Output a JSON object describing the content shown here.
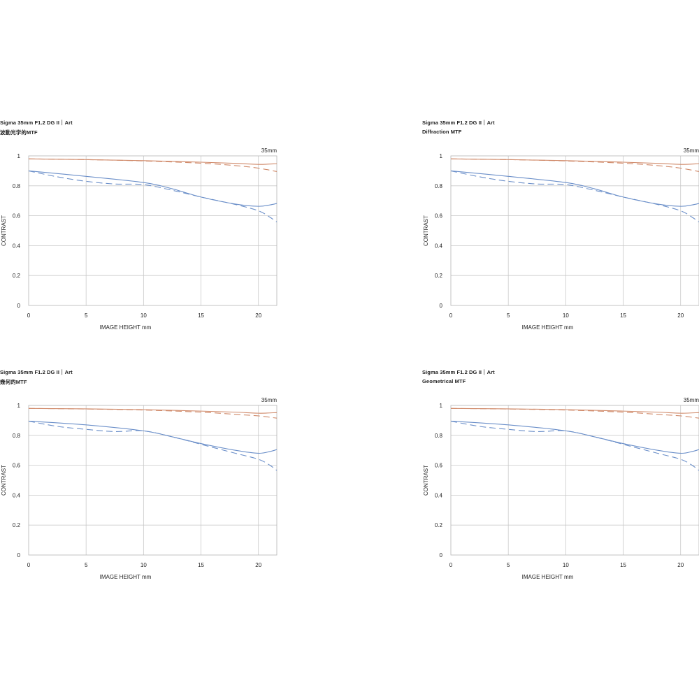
{
  "chart_data": [
    {
      "type": "line",
      "title": "Sigma 35mm F1.2 DG II｜Art",
      "subtitle": "波動光学的MTF",
      "focal_label": "35mm",
      "xlabel": "IMAGE HEIGHT  mm",
      "ylabel": "CONTRAST",
      "xlim": [
        0,
        21.6
      ],
      "ylim": [
        0,
        1
      ],
      "xticks": [
        "0",
        "5",
        "10",
        "15",
        "20"
      ],
      "yticks": [
        "0",
        "0.2",
        "0.4",
        "0.6",
        "0.8",
        "1"
      ],
      "grid": true,
      "series": [
        {
          "color": "#d08a6a",
          "dash": false,
          "x": [
            0,
            5,
            10,
            15,
            18,
            20,
            21.6
          ],
          "y": [
            0.98,
            0.975,
            0.968,
            0.958,
            0.95,
            0.943,
            0.948
          ]
        },
        {
          "color": "#d08a6a",
          "dash": true,
          "x": [
            0,
            5,
            10,
            15,
            18,
            20,
            21.6
          ],
          "y": [
            0.98,
            0.975,
            0.966,
            0.951,
            0.935,
            0.918,
            0.895
          ]
        },
        {
          "color": "#6b8fc9",
          "dash": false,
          "x": [
            0,
            5,
            10,
            12.5,
            15,
            18,
            20,
            21,
            21.6
          ],
          "y": [
            0.9,
            0.863,
            0.822,
            0.78,
            0.725,
            0.678,
            0.663,
            0.672,
            0.682
          ]
        },
        {
          "color": "#6b8fc9",
          "dash": true,
          "x": [
            0,
            2.5,
            5,
            7.5,
            10,
            12.5,
            15,
            18,
            20,
            21,
            21.6
          ],
          "y": [
            0.9,
            0.86,
            0.83,
            0.812,
            0.808,
            0.77,
            0.725,
            0.675,
            0.633,
            0.59,
            0.558
          ]
        }
      ]
    },
    {
      "type": "line",
      "title": "Sigma 35mm F1.2 DG II｜Art",
      "subtitle": "Diffraction MTF",
      "focal_label": "35mm",
      "xlabel": "IMAGE HEIGHT  mm",
      "ylabel": "CONTRAST",
      "xlim": [
        0,
        21.6
      ],
      "ylim": [
        0,
        1
      ],
      "xticks": [
        "0",
        "5",
        "10",
        "15",
        "20"
      ],
      "yticks": [
        "0",
        "0.2",
        "0.4",
        "0.6",
        "0.8",
        "1"
      ],
      "grid": true,
      "series": [
        {
          "color": "#d08a6a",
          "dash": false,
          "x": [
            0,
            5,
            10,
            15,
            18,
            20,
            21.6
          ],
          "y": [
            0.98,
            0.975,
            0.968,
            0.958,
            0.95,
            0.943,
            0.948
          ]
        },
        {
          "color": "#d08a6a",
          "dash": true,
          "x": [
            0,
            5,
            10,
            15,
            18,
            20,
            21.6
          ],
          "y": [
            0.98,
            0.975,
            0.966,
            0.951,
            0.935,
            0.918,
            0.895
          ]
        },
        {
          "color": "#6b8fc9",
          "dash": false,
          "x": [
            0,
            5,
            10,
            12.5,
            15,
            18,
            20,
            21,
            21.6
          ],
          "y": [
            0.9,
            0.863,
            0.822,
            0.78,
            0.725,
            0.678,
            0.663,
            0.672,
            0.682
          ]
        },
        {
          "color": "#6b8fc9",
          "dash": true,
          "x": [
            0,
            2.5,
            5,
            7.5,
            10,
            12.5,
            15,
            18,
            20,
            21,
            21.6
          ],
          "y": [
            0.9,
            0.86,
            0.83,
            0.812,
            0.808,
            0.77,
            0.725,
            0.675,
            0.633,
            0.59,
            0.558
          ]
        }
      ]
    },
    {
      "type": "line",
      "title": "Sigma 35mm F1.2 DG II｜Art",
      "subtitle": "幾何的MTF",
      "focal_label": "35mm",
      "xlabel": "IMAGE HEIGHT  mm",
      "ylabel": "CONTRAST",
      "xlim": [
        0,
        21.6
      ],
      "ylim": [
        0,
        1
      ],
      "xticks": [
        "0",
        "5",
        "10",
        "15",
        "20"
      ],
      "yticks": [
        "0",
        "0.2",
        "0.4",
        "0.6",
        "0.8",
        "1"
      ],
      "grid": true,
      "series": [
        {
          "color": "#d08a6a",
          "dash": false,
          "x": [
            0,
            5,
            10,
            15,
            18,
            20,
            21.6
          ],
          "y": [
            0.98,
            0.977,
            0.972,
            0.962,
            0.955,
            0.948,
            0.952
          ]
        },
        {
          "color": "#d08a6a",
          "dash": true,
          "x": [
            0,
            5,
            10,
            15,
            18,
            20,
            21.6
          ],
          "y": [
            0.98,
            0.976,
            0.969,
            0.955,
            0.94,
            0.93,
            0.915
          ]
        },
        {
          "color": "#6b8fc9",
          "dash": false,
          "x": [
            0,
            5,
            10,
            12.5,
            15,
            18,
            20,
            21,
            21.6
          ],
          "y": [
            0.895,
            0.87,
            0.83,
            0.79,
            0.745,
            0.7,
            0.68,
            0.692,
            0.705
          ]
        },
        {
          "color": "#6b8fc9",
          "dash": true,
          "x": [
            0,
            2.5,
            5,
            7.5,
            10,
            12.5,
            15,
            18,
            20,
            21,
            21.6
          ],
          "y": [
            0.895,
            0.86,
            0.84,
            0.825,
            0.83,
            0.79,
            0.74,
            0.68,
            0.64,
            0.6,
            0.565
          ]
        }
      ]
    },
    {
      "type": "line",
      "title": "Sigma 35mm F1.2 DG II｜Art",
      "subtitle": "Geometrical MTF",
      "focal_label": "35mm",
      "xlabel": "IMAGE HEIGHT  mm",
      "ylabel": "CONTRAST",
      "xlim": [
        0,
        21.6
      ],
      "ylim": [
        0,
        1
      ],
      "xticks": [
        "0",
        "5",
        "10",
        "15",
        "20"
      ],
      "yticks": [
        "0",
        "0.2",
        "0.4",
        "0.6",
        "0.8",
        "1"
      ],
      "grid": true,
      "series": [
        {
          "color": "#d08a6a",
          "dash": false,
          "x": [
            0,
            5,
            10,
            15,
            18,
            20,
            21.6
          ],
          "y": [
            0.98,
            0.977,
            0.972,
            0.962,
            0.955,
            0.948,
            0.952
          ]
        },
        {
          "color": "#d08a6a",
          "dash": true,
          "x": [
            0,
            5,
            10,
            15,
            18,
            20,
            21.6
          ],
          "y": [
            0.98,
            0.976,
            0.969,
            0.955,
            0.94,
            0.93,
            0.915
          ]
        },
        {
          "color": "#6b8fc9",
          "dash": false,
          "x": [
            0,
            5,
            10,
            12.5,
            15,
            18,
            20,
            21,
            21.6
          ],
          "y": [
            0.895,
            0.87,
            0.83,
            0.79,
            0.745,
            0.7,
            0.68,
            0.692,
            0.705
          ]
        },
        {
          "color": "#6b8fc9",
          "dash": true,
          "x": [
            0,
            2.5,
            5,
            7.5,
            10,
            12.5,
            15,
            18,
            20,
            21,
            21.6
          ],
          "y": [
            0.895,
            0.86,
            0.84,
            0.825,
            0.83,
            0.79,
            0.74,
            0.68,
            0.64,
            0.6,
            0.565
          ]
        }
      ]
    }
  ]
}
